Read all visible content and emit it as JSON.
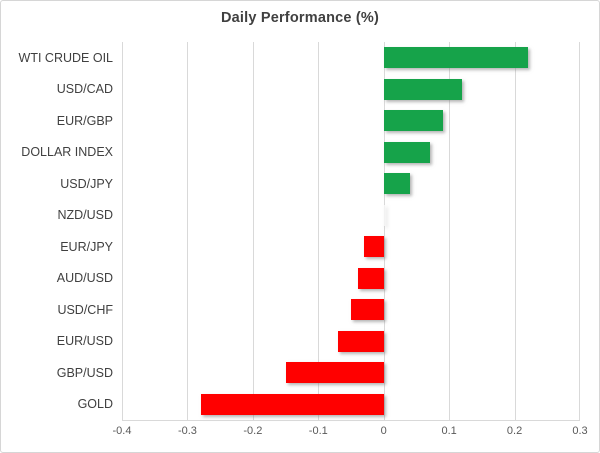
{
  "chart_data": {
    "type": "bar",
    "orientation": "horizontal",
    "title": "Daily Performance (%)",
    "categories": [
      "WTI CRUDE OIL",
      "USD/CAD",
      "EUR/GBP",
      "DOLLAR INDEX",
      "USD/JPY",
      "NZD/USD",
      "EUR/JPY",
      "AUD/USD",
      "USD/CHF",
      "EUR/USD",
      "GBP/USD",
      "GOLD"
    ],
    "values": [
      0.22,
      0.12,
      0.09,
      0.07,
      0.04,
      0.0,
      -0.03,
      -0.04,
      -0.05,
      -0.07,
      -0.15,
      -0.28
    ],
    "xlabel": "",
    "ylabel": "",
    "xlim": [
      -0.4,
      0.3
    ],
    "xticks": [
      -0.4,
      -0.3,
      -0.2,
      -0.1,
      0,
      0.1,
      0.2,
      0.3
    ],
    "xtick_labels": [
      "-0.4",
      "-0.3",
      "-0.2",
      "-0.1",
      "0",
      "0.1",
      "0.2",
      "0.3"
    ],
    "grid": "vertical-gridlines-on",
    "legend": "none",
    "colors": {
      "positive": "#16a34a",
      "negative": "#ff0000",
      "zero": "#f2f2f2",
      "gridline": "#d9d9d9",
      "title_text": "#404040",
      "category_text": "#404040",
      "tick_text": "#595959",
      "border": "#d6d6d6",
      "background": "#ffffff"
    }
  }
}
